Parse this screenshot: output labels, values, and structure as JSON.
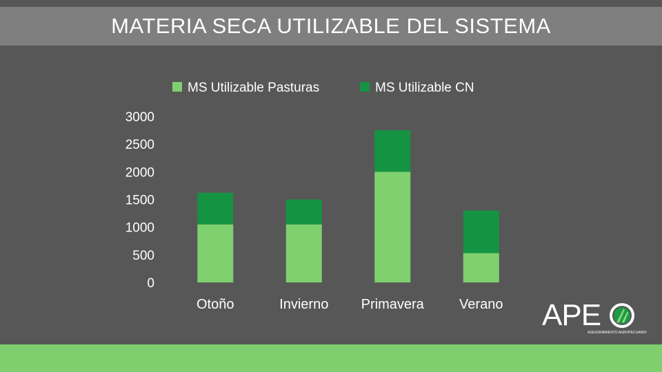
{
  "slide": {
    "title": "MATERIA SECA UTILIZABLE DEL SISTEMA"
  },
  "logo": {
    "text": "APE",
    "subtitle": "ASESORAMIENTO AGROPECUARIO"
  },
  "colors": {
    "background": "#575757",
    "title_band": "#7f7f7f",
    "footer_band": "#7fcf6e",
    "pasturas": "#7fd06f",
    "cn": "#149443"
  },
  "chart_data": {
    "type": "bar",
    "stacked": true,
    "categories": [
      "Otoño",
      "Invierno",
      "Primavera",
      "Verano"
    ],
    "series": [
      {
        "name": "MS Utilizable Pasturas",
        "color": "#7fd06f",
        "values": [
          1050,
          1050,
          2000,
          530
        ]
      },
      {
        "name": "MS Utilizable CN",
        "color": "#149443",
        "values": [
          570,
          450,
          750,
          770
        ]
      }
    ],
    "y_ticks": [
      "0",
      "500",
      "1000",
      "1500",
      "2000",
      "2500",
      "3000"
    ],
    "ylim": [
      0,
      3000
    ],
    "grid": false,
    "legend_position": "top"
  }
}
